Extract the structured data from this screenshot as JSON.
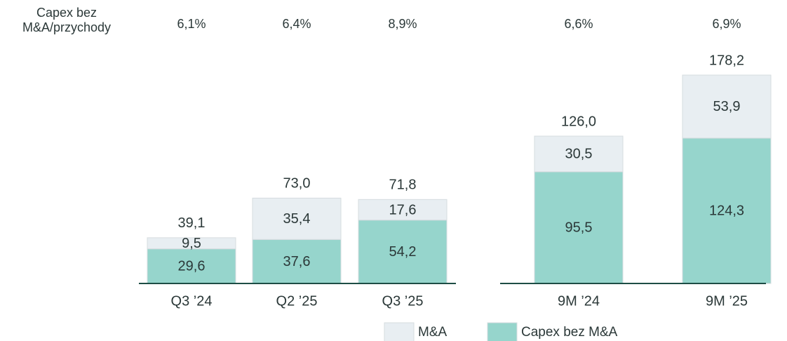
{
  "chart_data": {
    "type": "stacked_bar",
    "categories": [
      "Q3 ’24",
      "Q2 ’25",
      "Q3 ’25",
      "9M ’24",
      "9M ’25"
    ],
    "series": [
      {
        "name": "Capex bez M&A",
        "color": "#96d5cc",
        "values": [
          29.6,
          37.6,
          54.2,
          95.5,
          124.3
        ],
        "value_labels": [
          "29,6",
          "37,6",
          "54,2",
          "95,5",
          "124,3"
        ]
      },
      {
        "name": "M&A",
        "color": "#e8eef2",
        "values": [
          9.5,
          35.4,
          17.6,
          30.5,
          53.9
        ],
        "value_labels": [
          "9,5",
          "35,4",
          "17,6",
          "30,5",
          "53,9"
        ]
      }
    ],
    "totals": [
      39.1,
      73.0,
      71.8,
      126.0,
      178.2
    ],
    "total_labels": [
      "39,1",
      "73,0",
      "71,8",
      "126,0",
      "178,2"
    ],
    "ratio": {
      "label": "Capex bez M&A/przychody",
      "values": [
        6.1,
        6.4,
        8.9,
        6.6,
        6.9
      ],
      "value_labels": [
        "6,1%",
        "6,4%",
        "8,9%",
        "6,6%",
        "6,9%"
      ]
    },
    "ylim": [
      0,
      180
    ]
  }
}
